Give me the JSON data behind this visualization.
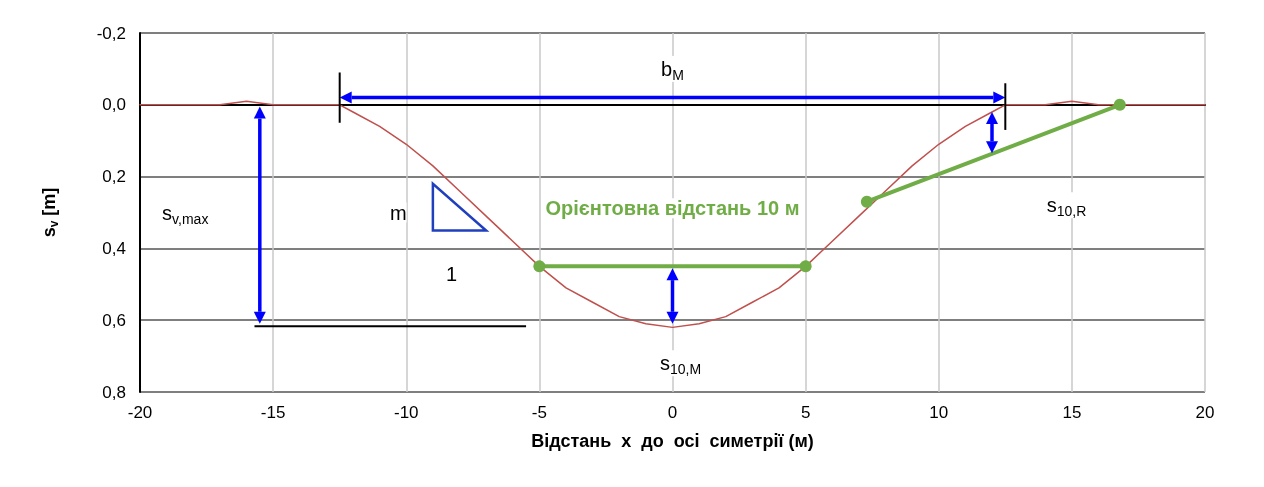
{
  "chart_data": {
    "type": "line",
    "xlabel": "Відстань  x  до  осі  симетрії (м)",
    "ylabel": "s$_{v}$ [m]",
    "xlim": [
      -20,
      20
    ],
    "xticks": [
      -20,
      -15,
      -10,
      -5,
      0,
      5,
      10,
      15,
      20
    ],
    "ylim": [
      0.8,
      -0.2
    ],
    "yticks": [
      {
        "value": -0.2,
        "label": "-0,2"
      },
      {
        "value": 0,
        "label": "0,0"
      },
      {
        "value": 0.2,
        "label": "0,2"
      },
      {
        "value": 0.4,
        "label": "0,4"
      },
      {
        "value": 0.6,
        "label": "0,6"
      },
      {
        "value": 0.8,
        "label": "0,8"
      }
    ],
    "grid": true,
    "legend": false,
    "series": [
      {
        "color": "#c0504d",
        "marker": "none",
        "x": [
          -20,
          -17,
          -16,
          -15,
          -14,
          -13,
          -12.5,
          -12,
          -11,
          -10,
          -9,
          -8,
          -7,
          -6,
          -5,
          -4,
          -3,
          -2,
          -1,
          0,
          1,
          2,
          3,
          4,
          5,
          6,
          7,
          8,
          9,
          10,
          11,
          12,
          12.5,
          13,
          14,
          15,
          16,
          17,
          20
        ],
        "values": [
          0,
          0,
          -0.01,
          0,
          0,
          0,
          0,
          0.02,
          0.06,
          0.11,
          0.17,
          0.24,
          0.31,
          0.38,
          0.45,
          0.51,
          0.55,
          0.59,
          0.61,
          0.62,
          0.61,
          0.59,
          0.55,
          0.51,
          0.45,
          0.38,
          0.31,
          0.24,
          0.17,
          0.11,
          0.06,
          0.02,
          0,
          0,
          0,
          -0.01,
          0,
          0,
          0
        ]
      },
      {
        "color": "#70ad47",
        "marker": "circle",
        "name": "Орієнтовна відстань 10 м",
        "x": [
          -5,
          5
        ],
        "values": [
          0.45,
          0.45
        ]
      },
      {
        "color": "#70ad47",
        "marker": "circle",
        "x": [
          7.3,
          16.8
        ],
        "values": [
          0.27,
          0
        ]
      }
    ],
    "annotations": [
      "b$_{M}$",
      "s$_{v,max}$",
      "m",
      "1",
      "s$_{10,M}$",
      "s$_{10,R}$"
    ]
  }
}
